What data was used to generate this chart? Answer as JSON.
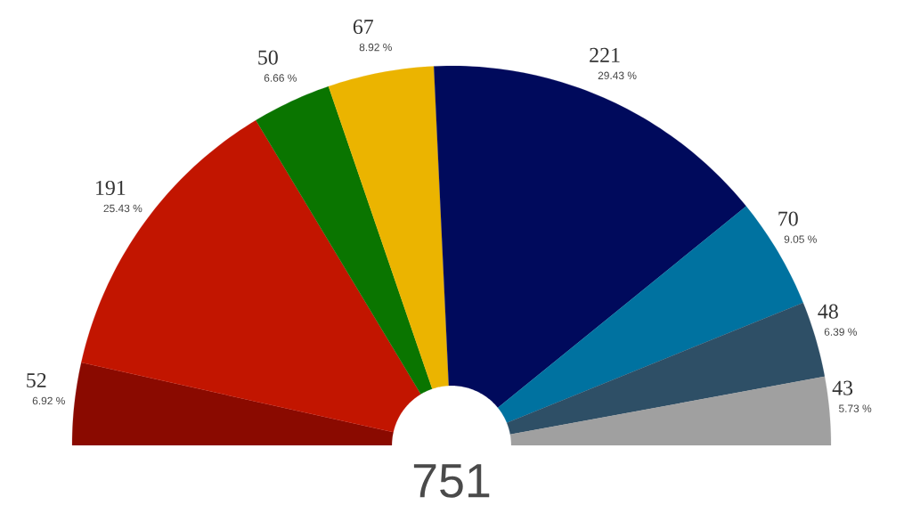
{
  "chart_data": {
    "type": "donut",
    "categories": [
      null,
      null,
      null,
      null,
      null,
      null,
      null,
      null
    ],
    "values": [
      52,
      191,
      50,
      67,
      221,
      70,
      48,
      43
    ],
    "colors": [
      "#8a0a00",
      "#c21500",
      "#0a7500",
      "#ebb400",
      "#000a5c",
      "#0072a0",
      "#2e4f66",
      "#a0a0a0"
    ],
    "data_labels": true,
    "annotations": [
      "6.92 %",
      "25.43 %",
      "6.66 %",
      "8.92 %",
      "29.43 %",
      "9.05 %",
      "6.39 %",
      "5.73 %",
      "751"
    ]
  }
}
